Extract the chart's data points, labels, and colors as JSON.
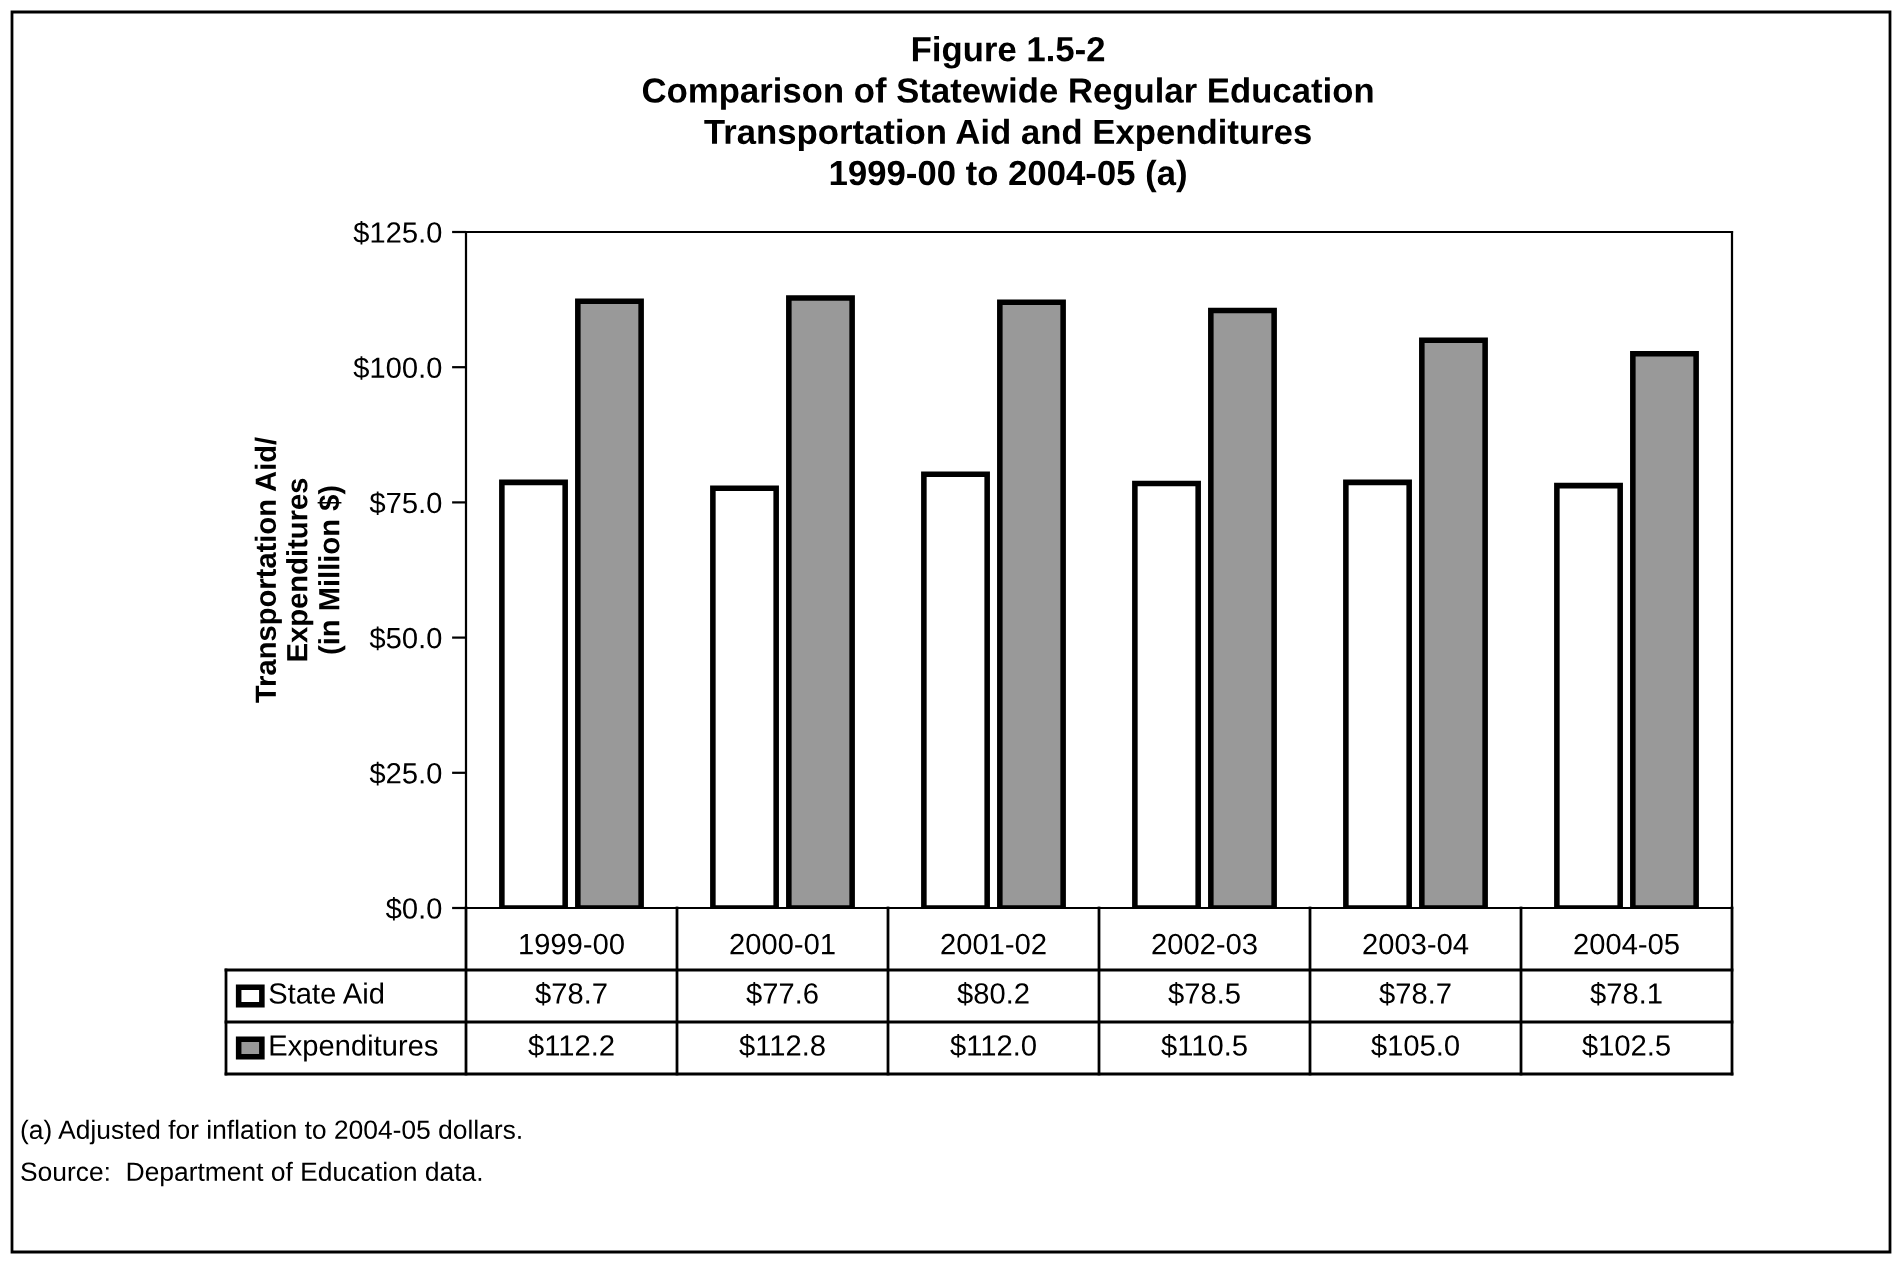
{
  "chart_data": {
    "type": "bar",
    "title": "Figure 1.5-2\nComparison of Statewide Regular Education\nTransportation Aid and Expenditures\n1999-00 to 2004-05 (a)",
    "ylabel": "Transportation Aid/\nExpenditures\n(in Million $)",
    "categories": [
      "1999-00",
      "2000-01",
      "2001-02",
      "2002-03",
      "2003-04",
      "2004-05"
    ],
    "series": [
      {
        "name": "State Aid",
        "color": "#ffffff",
        "values": [
          78.7,
          77.6,
          80.2,
          78.5,
          78.7,
          78.1
        ],
        "value_labels": [
          "$78.7",
          "$77.6",
          "$80.2",
          "$78.5",
          "$78.7",
          "$78.1"
        ]
      },
      {
        "name": "Expenditures",
        "color": "#999999",
        "values": [
          112.2,
          112.8,
          112.0,
          110.5,
          105.0,
          102.5
        ],
        "value_labels": [
          "$112.2",
          "$112.8",
          "$112.0",
          "$110.5",
          "$105.0",
          "$102.5"
        ]
      }
    ],
    "ylim": [
      0,
      125
    ],
    "yticks": [
      {
        "value": 0,
        "label": "$0.0"
      },
      {
        "value": 25,
        "label": "$25.0"
      },
      {
        "value": 50,
        "label": "$50.0"
      },
      {
        "value": 75,
        "label": "$75.0"
      },
      {
        "value": 100,
        "label": "$100.0"
      },
      {
        "value": 125,
        "label": "$125.0"
      }
    ],
    "grid": false,
    "legend": "bottom",
    "annotations": [
      "(a) Adjusted for inflation to 2004-05 dollars.",
      "Source:  Department of Education data."
    ]
  }
}
